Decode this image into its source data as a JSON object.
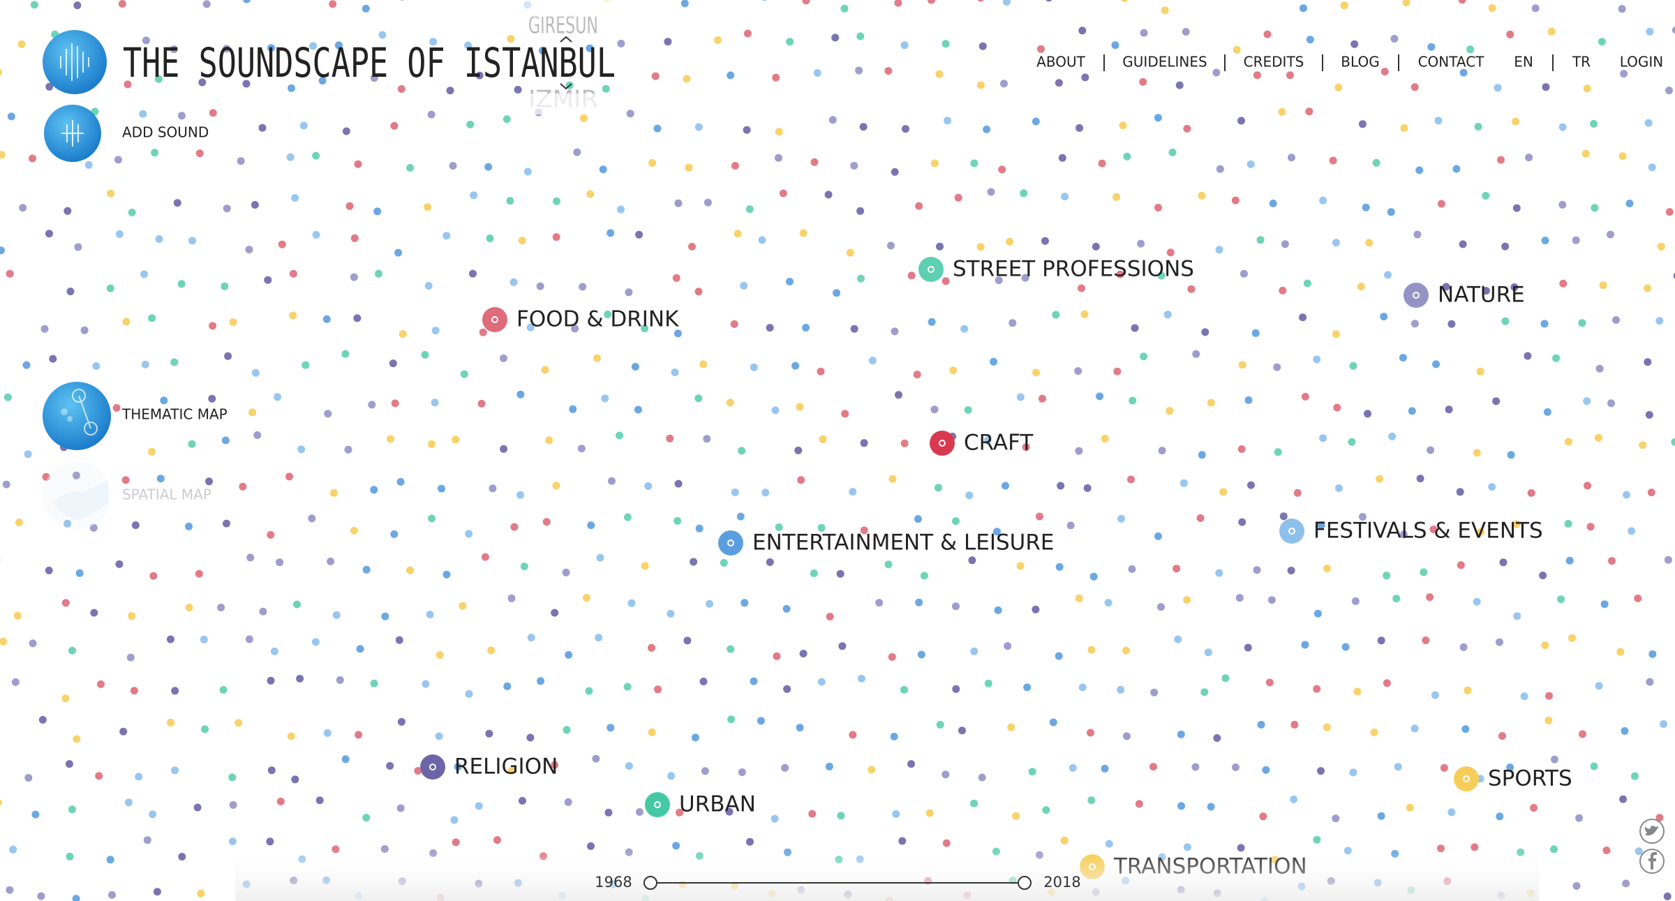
{
  "header": {
    "title": "THE SOUNDSCAPE OF ISTANBUL",
    "city_prev": "GIRESUN",
    "city_next": "IZMIR"
  },
  "nav": [
    "ABOUT",
    "GUIDELINES",
    "CREDITS",
    "BLOG",
    "CONTACT",
    "EN",
    "TR",
    "LOGIN"
  ],
  "side_menu": [
    {
      "label": "ADD SOUND"
    },
    {
      "label": "THEMATIC MAP"
    },
    {
      "label": "SPATIAL MAP"
    }
  ],
  "categories": [
    {
      "label": "FOOD & DRINK",
      "color": "#e06b7a"
    },
    {
      "label": "STREET PROFESSIONS",
      "color": "#5ecfb0"
    },
    {
      "label": "NATURE",
      "color": "#9592c6"
    },
    {
      "label": "CRAFT",
      "color": "#d9394f"
    },
    {
      "label": "ENTERTAINMENT & LEISURE",
      "color": "#5b9ee0"
    },
    {
      "label": "FESTIVALS & EVENTS",
      "color": "#8ec0ec"
    },
    {
      "label": "RELIGION",
      "color": "#6c65a8"
    },
    {
      "label": "URBAN",
      "color": "#45c9a5"
    },
    {
      "label": "SPORTS",
      "color": "#f7cd5a"
    },
    {
      "label": "TRANSPORTATION",
      "color": "#f7c948"
    }
  ],
  "timeline": {
    "start": 1968,
    "end": 2018
  }
}
